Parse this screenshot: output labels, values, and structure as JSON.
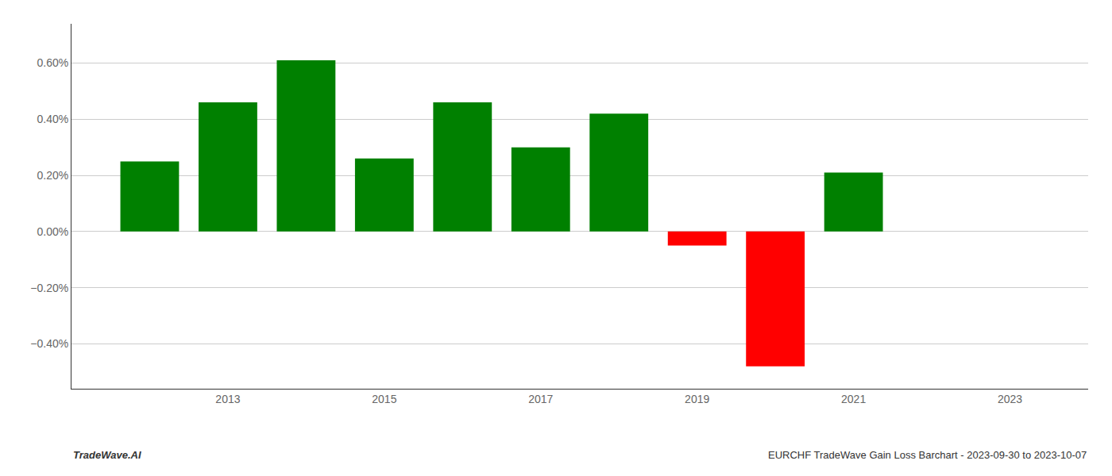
{
  "chart_data": {
    "type": "bar",
    "x": [
      2012,
      2013,
      2014,
      2015,
      2016,
      2017,
      2018,
      2019,
      2020,
      2021
    ],
    "values": [
      0.0025,
      0.0046,
      0.0061,
      0.0026,
      0.0046,
      0.003,
      0.0042,
      -0.0005,
      -0.0048,
      0.0021
    ],
    "colors": [
      "#008000",
      "#008000",
      "#008000",
      "#008000",
      "#008000",
      "#008000",
      "#008000",
      "#ff0000",
      "#ff0000",
      "#008000"
    ],
    "xlim": [
      2011.0,
      2024.0
    ],
    "xticks": [
      2013,
      2015,
      2017,
      2019,
      2021,
      2023
    ],
    "ylim": [
      -0.0056,
      0.0074
    ],
    "yticks": [
      {
        "value": -0.004,
        "label": "−0.40%"
      },
      {
        "value": -0.002,
        "label": "−0.20%"
      },
      {
        "value": 0.0,
        "label": "0.00%"
      },
      {
        "value": 0.002,
        "label": "0.20%"
      },
      {
        "value": 0.004,
        "label": "0.40%"
      },
      {
        "value": 0.006,
        "label": "0.60%"
      }
    ],
    "grid": true,
    "annotations": [
      "TradeWave.AI",
      "EURCHF TradeWave Gain Loss Barchart - 2023-09-30 to 2023-10-07"
    ]
  }
}
